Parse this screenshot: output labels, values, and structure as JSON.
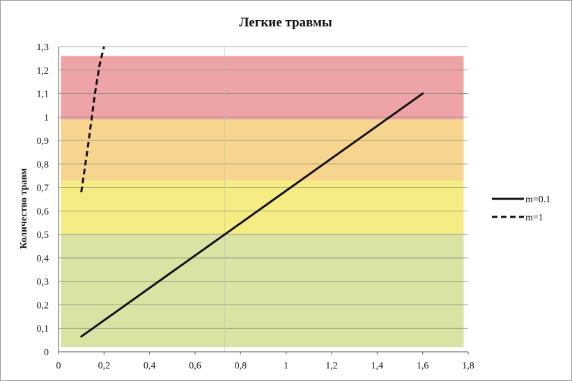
{
  "chart_data": {
    "type": "line",
    "title": "Легкие травмы",
    "xlabel": "",
    "ylabel": "Количество травм",
    "xlim": [
      0,
      1.8
    ],
    "ylim": [
      0,
      1.3
    ],
    "x_ticks": [
      "0",
      "0,2",
      "0,4",
      "0,6",
      "0,8",
      "1",
      "1,2",
      "1,4",
      "1,6",
      "1,8"
    ],
    "y_ticks": [
      "0",
      "0,1",
      "0,2",
      "0,3",
      "0,4",
      "0,5",
      "0,6",
      "0,7",
      "0,8",
      "0,9",
      "1",
      "1,1",
      "1,2",
      "1,3"
    ],
    "grid": "horizontal",
    "legend": "right",
    "bands": [
      {
        "zone": "green",
        "from": 0.02,
        "to": 0.5,
        "color": "#dbe3a4"
      },
      {
        "zone": "yellow",
        "from": 0.5,
        "to": 0.73,
        "color": "#f6ec84"
      },
      {
        "zone": "orange",
        "from": 0.73,
        "to": 0.99,
        "color": "#f8d58e"
      },
      {
        "zone": "red",
        "from": 0.99,
        "to": 1.26,
        "color": "#eea3a7"
      }
    ],
    "series": [
      {
        "name": "m=0.1",
        "style": "solid",
        "color": "#111111",
        "x": [
          0.1,
          1.6
        ],
        "y": [
          0.065,
          1.1
        ]
      },
      {
        "name": "m=1",
        "style": "dashed",
        "color": "#111111",
        "x": [
          0.1,
          0.13,
          0.16,
          0.18,
          0.2
        ],
        "y": [
          0.68,
          0.88,
          1.1,
          1.22,
          1.3
        ]
      }
    ]
  }
}
